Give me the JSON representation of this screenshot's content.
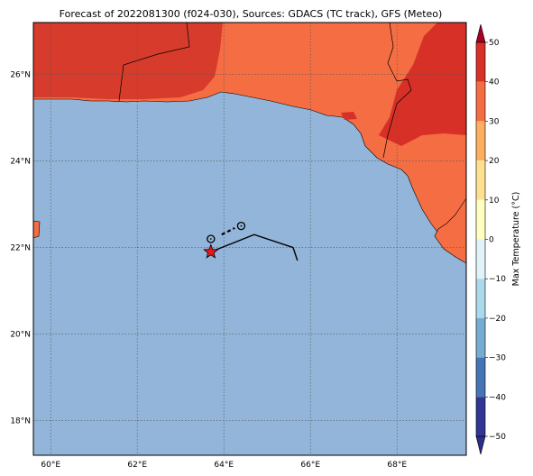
{
  "title": "Forecast of 2022081300 (f024-030), Sources: GDACS (TC track), GFS (Meteo)",
  "map": {
    "lon_range": [
      59.6,
      69.6
    ],
    "lat_range": [
      17.2,
      27.2
    ],
    "lon_ticks": [
      {
        "value": 60,
        "label": "60°E"
      },
      {
        "value": 62,
        "label": "62°E"
      },
      {
        "value": 64,
        "label": "64°E"
      },
      {
        "value": 66,
        "label": "66°E"
      },
      {
        "value": 68,
        "label": "68°E"
      }
    ],
    "lat_ticks": [
      {
        "value": 18,
        "label": "18°N"
      },
      {
        "value": 20,
        "label": "20°N"
      },
      {
        "value": 22,
        "label": "22°N"
      },
      {
        "value": 24,
        "label": "24°N"
      },
      {
        "value": 26,
        "label": "26°N"
      }
    ],
    "gridlines": true,
    "sea_color": "#92b5d9",
    "land_colors": {
      "hot": "#d63b2b",
      "warm": "#f46d43",
      "hottest": "#d73027"
    }
  },
  "track": {
    "forecast_path": [
      [
        63.7,
        21.9
      ],
      [
        64.7,
        22.3
      ],
      [
        65.6,
        22.0
      ],
      [
        65.7,
        21.7
      ]
    ],
    "past_path": [
      [
        63.95,
        22.3
      ],
      [
        64.25,
        22.45
      ]
    ],
    "past_positions": [
      [
        63.7,
        22.2
      ],
      [
        64.4,
        22.5
      ]
    ],
    "current_position": [
      63.7,
      21.9
    ]
  },
  "colorbar": {
    "label": "Max Temperature (°C)",
    "ticks": [
      "50",
      "40",
      "30",
      "20",
      "10",
      "0",
      "−10",
      "−20",
      "−30",
      "−40",
      "−50"
    ],
    "colors": [
      "#a50026",
      "#d73027",
      "#f46d43",
      "#fdae61",
      "#fee090",
      "#ffffbf",
      "#e0f3f8",
      "#abd9e9",
      "#74add1",
      "#4575b4",
      "#313695",
      "#2b2f8c"
    ]
  }
}
